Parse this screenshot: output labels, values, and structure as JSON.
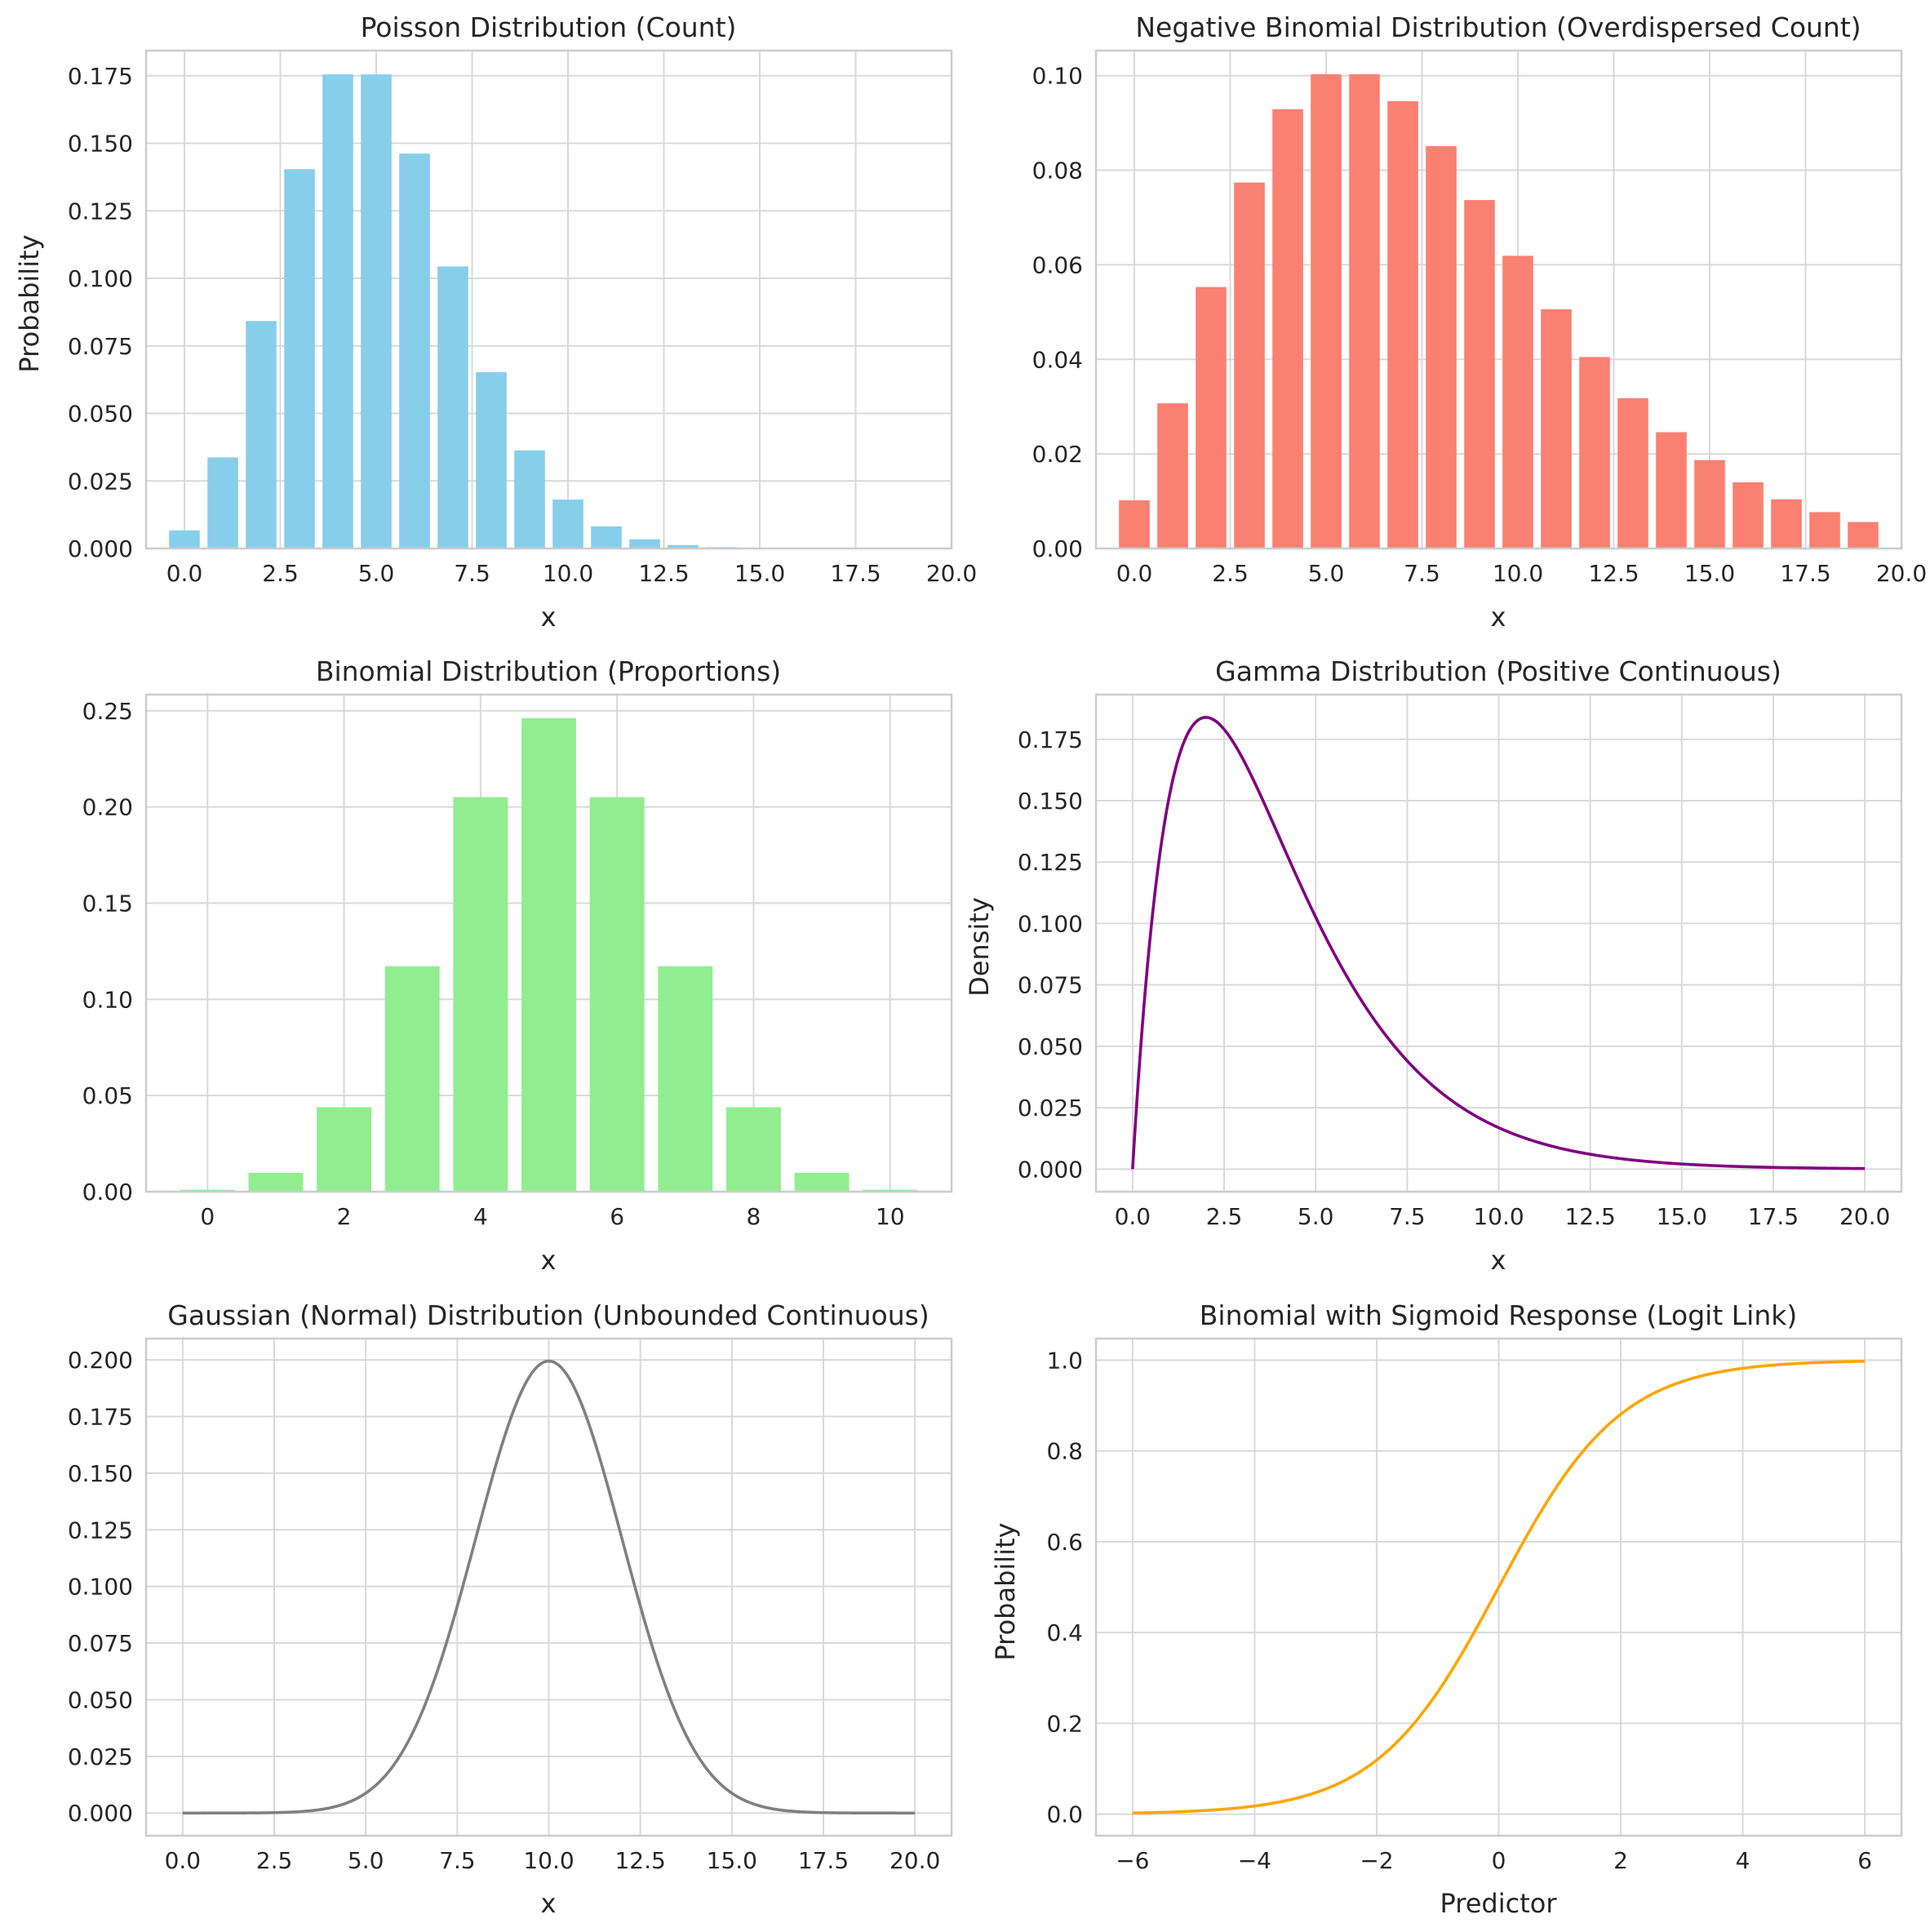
{
  "chart_data": [
    {
      "id": "poisson",
      "type": "bar",
      "title": "Poisson Distribution (Count)",
      "xlabel": "x",
      "ylabel": "Probability",
      "color": "#87ceeb",
      "x": [
        0,
        1,
        2,
        3,
        4,
        5,
        6,
        7,
        8,
        9,
        10,
        11,
        12,
        13,
        14,
        15,
        16,
        17,
        18,
        19
      ],
      "values": [
        0.0067,
        0.0337,
        0.0842,
        0.1404,
        0.1755,
        0.1755,
        0.1462,
        0.1044,
        0.0653,
        0.0363,
        0.0181,
        0.0082,
        0.0034,
        0.0013,
        0.0005,
        0.0002,
        0.0,
        0.0,
        0.0,
        0.0
      ],
      "xlim": [
        -1.0,
        20.0
      ],
      "ylim": [
        0,
        0.1843
      ],
      "xticks": [
        0.0,
        2.5,
        5.0,
        7.5,
        10.0,
        12.5,
        15.0,
        17.5,
        20.0
      ],
      "xtick_labels": [
        "0.0",
        "2.5",
        "5.0",
        "7.5",
        "10.0",
        "12.5",
        "15.0",
        "17.5",
        "20.0"
      ],
      "yticks": [
        0,
        0.025,
        0.05,
        0.075,
        0.1,
        0.125,
        0.15,
        0.175
      ],
      "ytick_labels": [
        "0.000",
        "0.025",
        "0.050",
        "0.075",
        "0.100",
        "0.125",
        "0.150",
        "0.175"
      ],
      "grid": true
    },
    {
      "id": "negbinom",
      "type": "bar",
      "title": "Negative Binomial Distribution (Overdispersed Count)",
      "xlabel": "x",
      "ylabel": "",
      "color": "#fa8072",
      "x": [
        0,
        1,
        2,
        3,
        4,
        5,
        6,
        7,
        8,
        9,
        10,
        11,
        12,
        13,
        14,
        15,
        16,
        17,
        18,
        19
      ],
      "values": [
        0.0102,
        0.0307,
        0.0553,
        0.0774,
        0.0929,
        0.1003,
        0.1003,
        0.0946,
        0.0851,
        0.0737,
        0.0619,
        0.0506,
        0.0405,
        0.0318,
        0.0246,
        0.0187,
        0.014,
        0.0104,
        0.0077,
        0.0056
      ],
      "xlim": [
        -1.0,
        20.0
      ],
      "ylim": [
        0,
        0.1053
      ],
      "xticks": [
        0.0,
        2.5,
        5.0,
        7.5,
        10.0,
        12.5,
        15.0,
        17.5,
        20.0
      ],
      "xtick_labels": [
        "0.0",
        "2.5",
        "5.0",
        "7.5",
        "10.0",
        "12.5",
        "15.0",
        "17.5",
        "20.0"
      ],
      "yticks": [
        0,
        0.02,
        0.04,
        0.06,
        0.08,
        0.1
      ],
      "ytick_labels": [
        "0.00",
        "0.02",
        "0.04",
        "0.06",
        "0.08",
        "0.10"
      ],
      "grid": true
    },
    {
      "id": "binomial",
      "type": "bar",
      "title": "Binomial Distribution (Proportions)",
      "xlabel": "x",
      "ylabel": "",
      "color": "#90ee90",
      "x": [
        0,
        1,
        2,
        3,
        4,
        5,
        6,
        7,
        8,
        9,
        10
      ],
      "values": [
        0.001,
        0.0098,
        0.0439,
        0.1172,
        0.2051,
        0.2461,
        0.2051,
        0.1172,
        0.0439,
        0.0098,
        0.001
      ],
      "xlim": [
        -0.9,
        10.9
      ],
      "ylim": [
        0,
        0.2584
      ],
      "xticks": [
        0,
        2,
        4,
        6,
        8,
        10
      ],
      "xtick_labels": [
        "0",
        "2",
        "4",
        "6",
        "8",
        "10"
      ],
      "yticks": [
        0,
        0.05,
        0.1,
        0.15,
        0.2,
        0.25
      ],
      "ytick_labels": [
        "0.00",
        "0.05",
        "0.10",
        "0.15",
        "0.20",
        "0.25"
      ],
      "grid": true
    },
    {
      "id": "gamma",
      "type": "line",
      "function": "gamma",
      "params": {
        "shape": 2,
        "scale": 2
      },
      "title": "Gamma Distribution (Positive Continuous)",
      "xlabel": "x",
      "ylabel": "Density",
      "color": "#800080",
      "x_range": [
        0,
        20
      ],
      "xlim": [
        -1.0,
        21.0
      ],
      "ylim": [
        -0.0092,
        0.1932
      ],
      "xticks": [
        0.0,
        2.5,
        5.0,
        7.5,
        10.0,
        12.5,
        15.0,
        17.5,
        20.0
      ],
      "xtick_labels": [
        "0.0",
        "2.5",
        "5.0",
        "7.5",
        "10.0",
        "12.5",
        "15.0",
        "17.5",
        "20.0"
      ],
      "yticks": [
        0,
        0.025,
        0.05,
        0.075,
        0.1,
        0.125,
        0.15,
        0.175
      ],
      "ytick_labels": [
        "0.000",
        "0.025",
        "0.050",
        "0.075",
        "0.100",
        "0.125",
        "0.150",
        "0.175"
      ],
      "grid": true
    },
    {
      "id": "gaussian",
      "type": "line",
      "function": "normal",
      "params": {
        "mean": 10,
        "sd": 2
      },
      "title": "Gaussian (Normal) Distribution (Unbounded Continuous)",
      "xlabel": "x",
      "ylabel": "",
      "color": "#808080",
      "x_range": [
        0,
        20
      ],
      "xlim": [
        -1.0,
        21.0
      ],
      "ylim": [
        -0.01,
        0.2094
      ],
      "xticks": [
        0.0,
        2.5,
        5.0,
        7.5,
        10.0,
        12.5,
        15.0,
        17.5,
        20.0
      ],
      "xtick_labels": [
        "0.0",
        "2.5",
        "5.0",
        "7.5",
        "10.0",
        "12.5",
        "15.0",
        "17.5",
        "20.0"
      ],
      "yticks": [
        0,
        0.025,
        0.05,
        0.075,
        0.1,
        0.125,
        0.15,
        0.175,
        0.2
      ],
      "ytick_labels": [
        "0.000",
        "0.025",
        "0.050",
        "0.075",
        "0.100",
        "0.125",
        "0.150",
        "0.175",
        "0.200"
      ],
      "grid": true
    },
    {
      "id": "sigmoid",
      "type": "line",
      "function": "sigmoid",
      "params": {},
      "title": "Binomial with Sigmoid Response (Logit Link)",
      "xlabel": "Predictor",
      "ylabel": "Probability",
      "color": "#ffa500",
      "x_range": [
        -6,
        6
      ],
      "xlim": [
        -6.6,
        6.6
      ],
      "ylim": [
        -0.0474,
        1.0474
      ],
      "xticks": [
        -6,
        -4,
        -2,
        0,
        2,
        4,
        6
      ],
      "xtick_labels": [
        "−6",
        "−4",
        "−2",
        "0",
        "2",
        "4",
        "6"
      ],
      "yticks": [
        0,
        0.2,
        0.4,
        0.6,
        0.8,
        1.0
      ],
      "ytick_labels": [
        "0.0",
        "0.2",
        "0.4",
        "0.6",
        "0.8",
        "1.0"
      ],
      "grid": true
    }
  ]
}
